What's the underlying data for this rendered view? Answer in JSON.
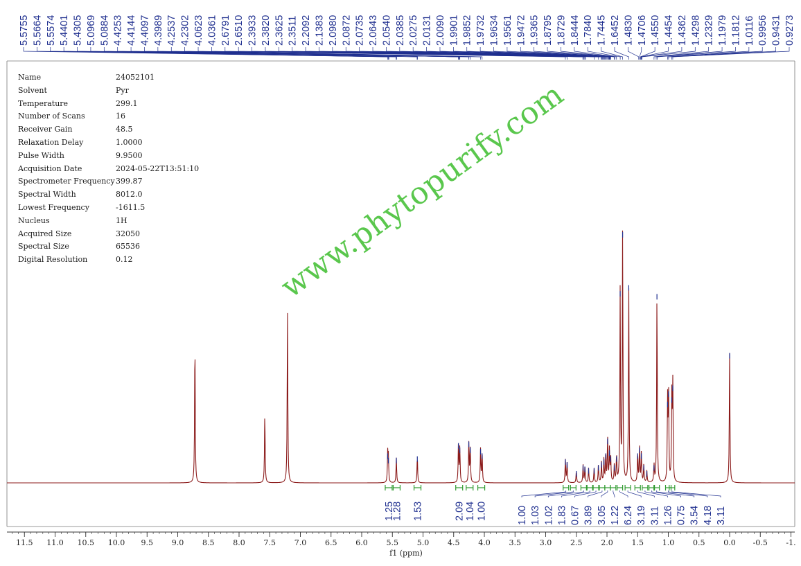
{
  "parameters": [
    {
      "name": "Name",
      "value": "24052101"
    },
    {
      "name": "Solvent",
      "value": "Pyr"
    },
    {
      "name": "Temperature",
      "value": "299.1"
    },
    {
      "name": "Number of Scans",
      "value": "16"
    },
    {
      "name": "Receiver Gain",
      "value": "48.5"
    },
    {
      "name": "Relaxation Delay",
      "value": "1.0000"
    },
    {
      "name": "Pulse Width",
      "value": "9.9500"
    },
    {
      "name": "Acquisition Date",
      "value": "2024-05-22T13:51:10"
    },
    {
      "name": "Spectrometer Frequency",
      "value": "399.87"
    },
    {
      "name": "Spectral Width",
      "value": "8012.0"
    },
    {
      "name": "Lowest Frequency",
      "value": "-1611.5"
    },
    {
      "name": "Nucleus",
      "value": "1H"
    },
    {
      "name": "Acquired Size",
      "value": "32050"
    },
    {
      "name": "Spectral Size",
      "value": "65536"
    },
    {
      "name": "Digital Resolution",
      "value": "0.12"
    }
  ],
  "watermark": "www.phytopurify.com",
  "colors": {
    "spectrum": "#8b1a1a",
    "peak_label": "#1f2f8f",
    "integral": "#2e9a2e",
    "axis": "#333333",
    "watermark": "#49c23a"
  },
  "chart_data": {
    "type": "line",
    "xlabel": "f1 (ppm)",
    "xlim": [
      11.9,
      -1.0
    ],
    "reversed_x": true,
    "ticks": [
      "11.5",
      "11.0",
      "10.5",
      "10.0",
      "9.5",
      "9.0",
      "8.5",
      "8.0",
      "7.5",
      "7.0",
      "6.5",
      "6.0",
      "5.5",
      "5.0",
      "4.5",
      "4.0",
      "3.5",
      "3.0",
      "2.5",
      "2.0",
      "1.5",
      "1.0",
      "0.5",
      "0.0",
      "-0.5",
      "-1."
    ],
    "peak_labels": [
      "5.5755",
      "5.5664",
      "5.5574",
      "5.4401",
      "5.4305",
      "5.0969",
      "5.0884",
      "4.4253",
      "4.4144",
      "4.4097",
      "4.3989",
      "4.2537",
      "4.2302",
      "4.0623",
      "4.0361",
      "2.6791",
      "2.6510",
      "2.3933",
      "2.3820",
      "2.3625",
      "2.3511",
      "2.2092",
      "2.1383",
      "2.0980",
      "2.0872",
      "2.0735",
      "2.0643",
      "2.0540",
      "2.0385",
      "2.0275",
      "2.0131",
      "2.0090",
      "1.9901",
      "1.9852",
      "1.9732",
      "1.9634",
      "1.9561",
      "1.9472",
      "1.9365",
      "1.8795",
      "1.8729",
      "1.8444",
      "1.7840",
      "1.7445",
      "1.6452",
      "1.4830",
      "1.4706",
      "1.4550",
      "1.4454",
      "1.4362",
      "1.4298",
      "1.2329",
      "1.1979",
      "1.1812",
      "1.0116",
      "0.9956",
      "0.9431",
      "0.9273"
    ],
    "integrals": [
      {
        "center": 5.56,
        "value": "1.25"
      },
      {
        "center": 5.43,
        "value": "1.28"
      },
      {
        "center": 5.09,
        "value": "1.53"
      },
      {
        "center": 4.41,
        "value": "2.09"
      },
      {
        "center": 4.24,
        "value": "1.04"
      },
      {
        "center": 4.05,
        "value": "1.00"
      },
      {
        "center": 2.67,
        "value": "1.00"
      },
      {
        "center": 2.55,
        "value": "1.03"
      },
      {
        "center": 2.38,
        "value": "1.02"
      },
      {
        "center": 2.28,
        "value": "1.83"
      },
      {
        "center": 2.18,
        "value": "0.67"
      },
      {
        "center": 2.08,
        "value": "3.89"
      },
      {
        "center": 1.99,
        "value": "3.05"
      },
      {
        "center": 1.9,
        "value": "1.22"
      },
      {
        "center": 1.79,
        "value": "6.24"
      },
      {
        "center": 1.66,
        "value": "3.19"
      },
      {
        "center": 1.5,
        "value": "3.11"
      },
      {
        "center": 1.38,
        "value": "1.26"
      },
      {
        "center": 1.27,
        "value": "0.75"
      },
      {
        "center": 1.19,
        "value": "3.54"
      },
      {
        "center": 1.0,
        "value": "4.18"
      },
      {
        "center": 0.94,
        "value": "3.11"
      }
    ],
    "peaks": [
      {
        "ppm": 8.72,
        "h": 0.98
      },
      {
        "ppm": 7.58,
        "h": 0.48
      },
      {
        "ppm": 7.21,
        "h": 1.18
      },
      {
        "ppm": 5.576,
        "h": 0.2
      },
      {
        "ppm": 5.565,
        "h": 0.17
      },
      {
        "ppm": 5.435,
        "h": 0.17
      },
      {
        "ppm": 5.093,
        "h": 0.18
      },
      {
        "ppm": 4.422,
        "h": 0.27
      },
      {
        "ppm": 4.4,
        "h": 0.24
      },
      {
        "ppm": 4.253,
        "h": 0.28
      },
      {
        "ppm": 4.23,
        "h": 0.24
      },
      {
        "ppm": 4.062,
        "h": 0.23
      },
      {
        "ppm": 4.036,
        "h": 0.2
      },
      {
        "ppm": 2.679,
        "h": 0.16
      },
      {
        "ppm": 2.651,
        "h": 0.14
      },
      {
        "ppm": 2.5,
        "h": 0.08
      },
      {
        "ppm": 2.39,
        "h": 0.12
      },
      {
        "ppm": 2.36,
        "h": 0.11
      },
      {
        "ppm": 2.3,
        "h": 0.1
      },
      {
        "ppm": 2.21,
        "h": 0.1
      },
      {
        "ppm": 2.14,
        "h": 0.12
      },
      {
        "ppm": 2.09,
        "h": 0.14
      },
      {
        "ppm": 2.05,
        "h": 0.16
      },
      {
        "ppm": 2.02,
        "h": 0.2
      },
      {
        "ppm": 1.99,
        "h": 0.3
      },
      {
        "ppm": 1.96,
        "h": 0.22
      },
      {
        "ppm": 1.94,
        "h": 0.18
      },
      {
        "ppm": 1.88,
        "h": 0.12
      },
      {
        "ppm": 1.844,
        "h": 0.18
      },
      {
        "ppm": 1.785,
        "h": 1.3
      },
      {
        "ppm": 1.745,
        "h": 1.7
      },
      {
        "ppm": 1.645,
        "h": 1.34
      },
      {
        "ppm": 1.5,
        "h": 0.2
      },
      {
        "ppm": 1.47,
        "h": 0.24
      },
      {
        "ppm": 1.44,
        "h": 0.2
      },
      {
        "ppm": 1.4,
        "h": 0.12
      },
      {
        "ppm": 1.35,
        "h": 0.08
      },
      {
        "ppm": 1.233,
        "h": 0.12
      },
      {
        "ppm": 1.185,
        "h": 1.28
      },
      {
        "ppm": 1.012,
        "h": 0.55
      },
      {
        "ppm": 0.996,
        "h": 0.62
      },
      {
        "ppm": 0.943,
        "h": 0.58
      },
      {
        "ppm": 0.927,
        "h": 0.66
      },
      {
        "ppm": 0.0,
        "h": 0.88
      }
    ]
  }
}
